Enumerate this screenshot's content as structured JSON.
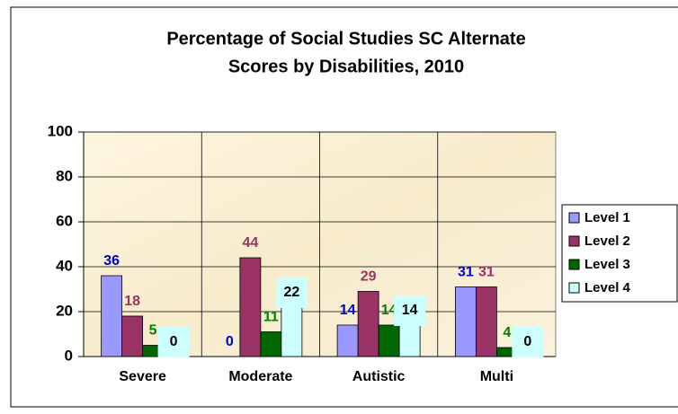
{
  "chart_data": {
    "type": "bar",
    "title": "Percentage of Social Studies SC Alternate Scores by Disabilities, 2010",
    "title_lines": [
      "Percentage of Social Studies SC Alternate",
      "Scores by Disabilities, 2010"
    ],
    "categories": [
      "Severe",
      "Moderate",
      "Autistic",
      "Multi"
    ],
    "series": [
      {
        "name": "Level 1",
        "color": "#9999ff",
        "label_color": "#0000cc",
        "values": [
          36,
          0,
          14,
          31
        ]
      },
      {
        "name": "Level 2",
        "color": "#993366",
        "label_color": "#993366",
        "values": [
          18,
          44,
          29,
          31
        ]
      },
      {
        "name": "Level 3",
        "color": "#006600",
        "label_color": "#008000",
        "values": [
          5,
          11,
          14,
          4
        ]
      },
      {
        "name": "Level 4",
        "color": "#ccffff",
        "label_color": "#000000",
        "label_background": "#ccffff",
        "values": [
          0,
          22,
          14,
          0
        ]
      }
    ],
    "ylim": [
      0,
      100
    ],
    "yticks": [
      0,
      20,
      40,
      60,
      80,
      100
    ],
    "grid": true,
    "legend": "right"
  }
}
